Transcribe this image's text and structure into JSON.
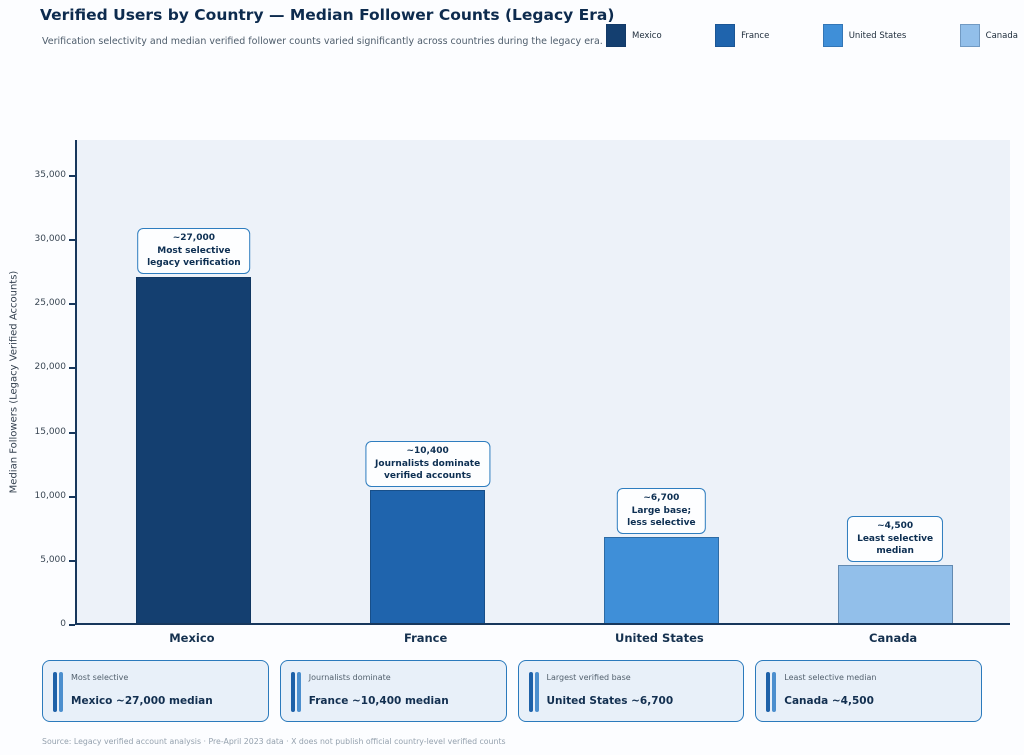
{
  "header": {
    "title": "Verified Users by Country — Median Follower Counts (Legacy Era)",
    "subtitle": "Verification selectivity and median verified follower counts varied significantly across countries during the legacy era."
  },
  "legend": {
    "items": [
      {
        "label": "Mexico",
        "color": "#143f70"
      },
      {
        "label": "France",
        "color": "#1f64ad"
      },
      {
        "label": "United States",
        "color": "#3f8fd8"
      },
      {
        "label": "Canada",
        "color": "#92bfea"
      }
    ]
  },
  "chart_data": {
    "type": "bar",
    "title": "Verified Users by Country — Median Follower Counts (Legacy Era)",
    "categories": [
      "Mexico",
      "France",
      "United States",
      "Canada"
    ],
    "values": [
      27000,
      10400,
      6700,
      4500
    ],
    "bar_colors": [
      "#143f70",
      "#1f64ad",
      "#3f8fd8",
      "#92bfea"
    ],
    "annotations": [
      [
        "~27,000",
        "Most selective",
        "legacy verification"
      ],
      [
        "~10,400",
        "Journalists dominate",
        "verified accounts"
      ],
      [
        "~6,700",
        "Large base;",
        "less selective"
      ],
      [
        "~4,500",
        "Least selective",
        "median"
      ]
    ],
    "xlabel": "",
    "ylabel": "Median Followers (Legacy Verified Accounts)",
    "ylim": [
      0,
      37800
    ],
    "yticks": [
      0,
      5000,
      10000,
      15000,
      20000,
      25000,
      30000,
      35000
    ],
    "ytick_labels": [
      "0",
      "5,000",
      "10,000",
      "15,000",
      "20,000",
      "25,000",
      "30,000",
      "35,000"
    ],
    "grid": false,
    "legend_position": "top-right"
  },
  "cards": [
    {
      "tag": "Most selective",
      "title": "Mexico ~27,000 median"
    },
    {
      "tag": "Journalists dominate",
      "title": "France ~10,400 median"
    },
    {
      "tag": "Largest verified base",
      "title": "United States ~6,700"
    },
    {
      "tag": "Least selective median",
      "title": "Canada ~4,500"
    }
  ],
  "footer": {
    "source": "Source: Legacy verified account analysis · Pre-April 2023 data · X does not publish official country-level verified counts"
  }
}
